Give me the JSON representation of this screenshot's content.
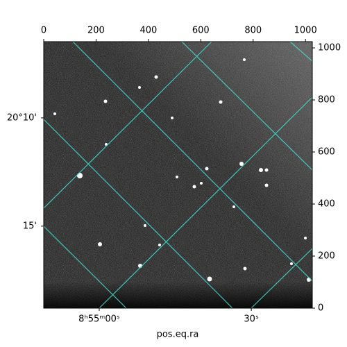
{
  "chart_data": {
    "type": "image",
    "xlabel": "pos.eq.ra",
    "xlim": [
      0,
      1026
    ],
    "ylim": [
      0,
      1024
    ],
    "xticks": [
      0,
      200,
      400,
      600,
      800,
      1000
    ],
    "yticks": [
      0,
      200,
      400,
      600,
      800,
      1000
    ],
    "world_xticks": [
      {
        "value": 212,
        "label": "8ʰ55ᵐ00ˢ"
      },
      {
        "value": 793,
        "label": "30ˢ"
      }
    ],
    "world_yticks": [
      {
        "value": 731,
        "label": "20°10'"
      },
      {
        "value": 315,
        "label": "15'"
      }
    ],
    "cmap": "gray"
  }
}
